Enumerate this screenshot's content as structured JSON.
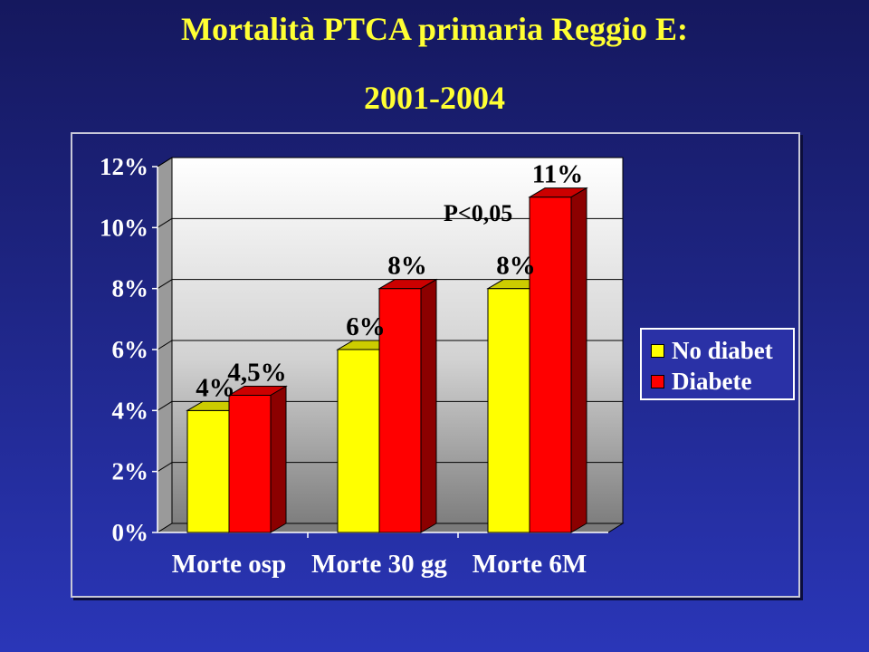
{
  "title": {
    "line1": "Mortalità PTCA primaria Reggio E:",
    "line2": "2001-2004"
  },
  "colors": {
    "no_diabet": "#ffff00",
    "diabete": "#ff0000",
    "title": "#ffff33"
  },
  "chart_data": {
    "type": "bar",
    "style": "3d-clustered",
    "categories": [
      "Morte osp",
      "Morte 30 gg",
      "Morte 6M"
    ],
    "series": [
      {
        "name": "No diabet",
        "values": [
          4,
          6,
          8
        ],
        "labels": [
          "4%",
          "6%",
          "8%"
        ]
      },
      {
        "name": "Diabete",
        "values": [
          4.5,
          8,
          11
        ],
        "labels": [
          "4,5%",
          "8%",
          "11%"
        ]
      }
    ],
    "y_ticks": [
      "0%",
      "2%",
      "4%",
      "6%",
      "8%",
      "10%",
      "12%"
    ],
    "ylim": [
      0,
      12
    ],
    "grid": true,
    "legend": "right",
    "annotations": [
      "P<0,05"
    ]
  }
}
